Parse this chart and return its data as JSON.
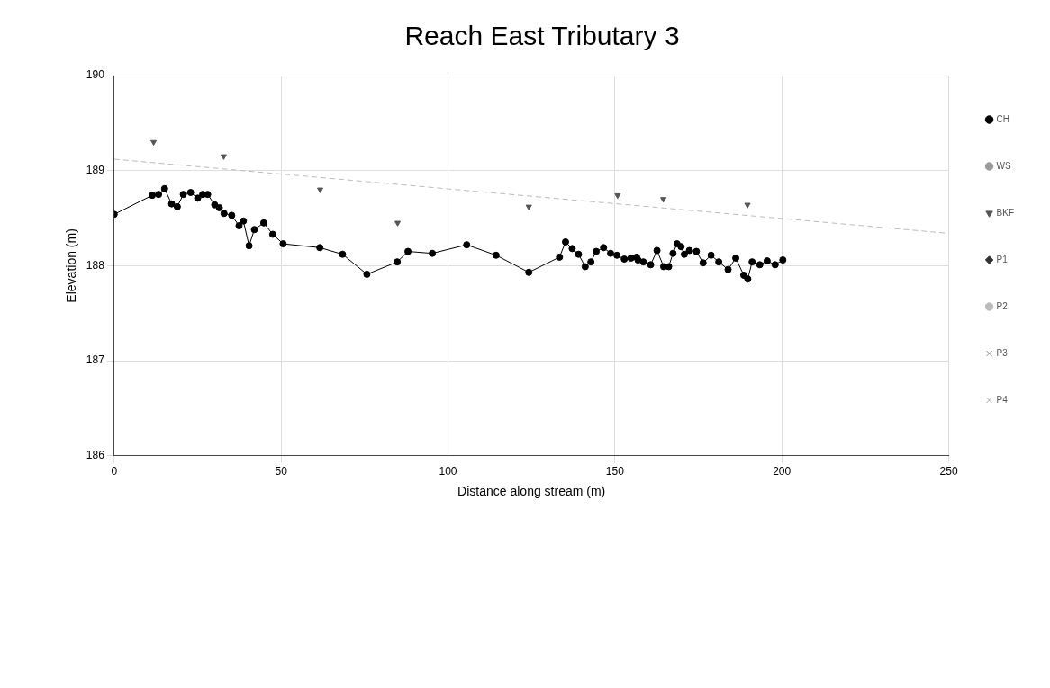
{
  "chart_data": {
    "type": "scatter",
    "title": "Reach East Tributary 3",
    "xlabel": "Distance along stream (m)",
    "ylabel": "Elevation (m)",
    "xlim": [
      0,
      250
    ],
    "xticks": [
      0,
      50,
      100,
      150,
      200,
      250
    ],
    "ylim": [
      186,
      190
    ],
    "yticks": [
      186,
      187,
      188,
      189,
      190
    ],
    "grid": true,
    "legend": "right",
    "series": [
      {
        "name": "CH",
        "type": "line",
        "color": "#000000",
        "marker": "circle",
        "line_style": "solid",
        "x": [
          0,
          11.4,
          13.3,
          15.1,
          17.2,
          18.9,
          20.7,
          22.9,
          25.0,
          26.5,
          28.0,
          30.1,
          31.5,
          32.9,
          35.2,
          37.4,
          38.7,
          40.4,
          42.0,
          44.8,
          47.5,
          50.6,
          61.6,
          68.4,
          75.7,
          84.8,
          88.0,
          95.3,
          105.6,
          114.4,
          124.2,
          133.4,
          135.2,
          137.2,
          139.1,
          141.1,
          142.8,
          144.4,
          146.6,
          148.7,
          150.6,
          152.8,
          154.8,
          156.5,
          156.9,
          158.5,
          160.7,
          162.6,
          164.6,
          166.1,
          167.4,
          168.6,
          169.8,
          170.8,
          172.3,
          174.4,
          176.4,
          178.8,
          181.1,
          183.9,
          186.2,
          188.6,
          189.8,
          191.1,
          193.4,
          195.6,
          198.0,
          200.3
        ],
        "values": [
          188.54,
          188.74,
          188.75,
          188.81,
          188.65,
          188.62,
          188.75,
          188.77,
          188.71,
          188.75,
          188.75,
          188.64,
          188.61,
          188.55,
          188.53,
          188.42,
          188.47,
          188.21,
          188.38,
          188.45,
          188.33,
          188.23,
          188.19,
          188.12,
          187.91,
          188.04,
          188.15,
          188.13,
          188.22,
          188.11,
          187.93,
          188.09,
          188.25,
          188.18,
          188.12,
          187.99,
          188.04,
          188.15,
          188.19,
          188.13,
          188.11,
          188.07,
          188.08,
          188.09,
          188.06,
          188.04,
          188.01,
          188.16,
          187.99,
          187.99,
          188.13,
          188.23,
          188.2,
          188.12,
          188.16,
          188.15,
          188.03,
          188.11,
          188.04,
          187.96,
          188.08,
          187.9,
          187.86,
          188.04,
          188.01,
          188.05,
          188.01,
          188.06
        ]
      },
      {
        "name": "WS",
        "color": "#999999",
        "marker": "circle"
      },
      {
        "name": "BKF",
        "color": "#555555",
        "marker": "triangle",
        "x": [
          11.8,
          32.8,
          61.7,
          84.9,
          124.2,
          150.8,
          164.5,
          189.7
        ],
        "values": [
          189.3,
          189.15,
          188.8,
          188.45,
          188.62,
          188.74,
          188.7,
          188.64
        ]
      },
      {
        "name": "P1",
        "color": "#333333",
        "marker": "diamond"
      },
      {
        "name": "P2",
        "color": "#bbbbbb",
        "marker": "circle"
      },
      {
        "name": "P3",
        "color": "#888888",
        "marker": "cross"
      },
      {
        "name": "P4",
        "color": "#aaaaaa",
        "marker": "cross"
      },
      {
        "type": "line",
        "color": "#bbbbbb",
        "marker": "none",
        "line_style": "dashed",
        "x": [
          0,
          250
        ],
        "values": [
          189.12,
          188.34
        ]
      }
    ]
  }
}
